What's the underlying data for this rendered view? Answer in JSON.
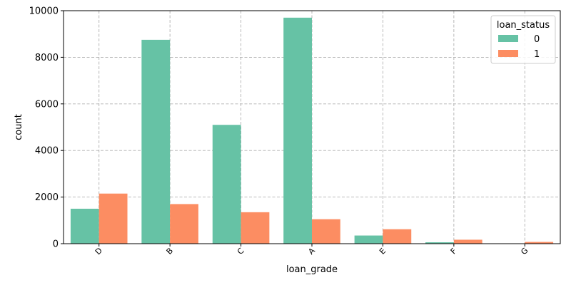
{
  "chart_data": {
    "type": "bar",
    "title": "",
    "xlabel": "loan_grade",
    "ylabel": "count",
    "categories": [
      "D",
      "B",
      "C",
      "A",
      "E",
      "F",
      "G"
    ],
    "series": [
      {
        "name": "0",
        "color": "#66c2a5",
        "values": [
          1500,
          8750,
          5100,
          9700,
          350,
          60,
          0
        ]
      },
      {
        "name": "1",
        "color": "#fc8d62",
        "values": [
          2150,
          1700,
          1350,
          1050,
          620,
          170,
          75
        ]
      }
    ],
    "ylim": [
      0,
      10000
    ],
    "yticks": [
      "0",
      "2000",
      "4000",
      "6000",
      "8000",
      "10000"
    ],
    "grid": true,
    "legend": {
      "title": "loan_status",
      "placement": "top-right"
    }
  }
}
